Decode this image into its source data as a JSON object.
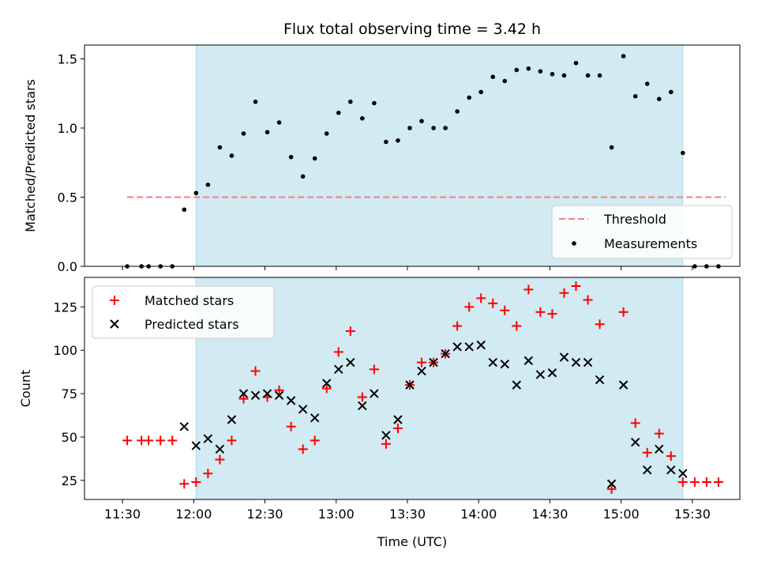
{
  "chart_data": {
    "type": "scatter",
    "title": "Flux total observing time = 3.42 h",
    "xlabel": "Time (UTC)",
    "x_ticks": [
      "11:30",
      "12:00",
      "12:30",
      "13:00",
      "13:30",
      "14:00",
      "14:30",
      "15:00",
      "15:30"
    ],
    "observing_window": [
      "12:01",
      "15:26"
    ],
    "colors": {
      "window": "#add8e6",
      "threshold": "#f08080",
      "measurements": "#000000",
      "matched": "#ff0000",
      "predicted": "#000000"
    },
    "panels": [
      {
        "ylabel": "Matched/Predicted stars",
        "ylim": [
          0,
          1.6
        ],
        "y_ticks": [
          "0.0",
          "0.5",
          "1.0",
          "1.5"
        ],
        "legend": {
          "placement": "lower-right",
          "entries": [
            "Threshold",
            "Measurements"
          ]
        },
        "threshold": {
          "name": "Threshold",
          "value": 0.5,
          "x_range": [
            "11:32",
            "15:44"
          ]
        },
        "series": [
          {
            "name": "Measurements",
            "points": [
              [
                "11:32",
                0.0
              ],
              [
                "11:38",
                0.0
              ],
              [
                "11:41",
                0.0
              ],
              [
                "11:46",
                0.0
              ],
              [
                "11:51",
                0.0
              ],
              [
                "11:56",
                0.41
              ],
              [
                "12:01",
                0.53
              ],
              [
                "12:06",
                0.59
              ],
              [
                "12:11",
                0.86
              ],
              [
                "12:16",
                0.8
              ],
              [
                "12:21",
                0.96
              ],
              [
                "12:26",
                1.19
              ],
              [
                "12:31",
                0.97
              ],
              [
                "12:36",
                1.04
              ],
              [
                "12:41",
                0.79
              ],
              [
                "12:46",
                0.65
              ],
              [
                "12:51",
                0.78
              ],
              [
                "12:56",
                0.96
              ],
              [
                "13:01",
                1.11
              ],
              [
                "13:06",
                1.19
              ],
              [
                "13:11",
                1.07
              ],
              [
                "13:16",
                1.18
              ],
              [
                "13:21",
                0.9
              ],
              [
                "13:26",
                0.91
              ],
              [
                "13:31",
                1.0
              ],
              [
                "13:36",
                1.05
              ],
              [
                "13:41",
                1.0
              ],
              [
                "13:46",
                1.0
              ],
              [
                "13:51",
                1.12
              ],
              [
                "13:56",
                1.22
              ],
              [
                "14:01",
                1.26
              ],
              [
                "14:06",
                1.37
              ],
              [
                "14:11",
                1.34
              ],
              [
                "14:16",
                1.42
              ],
              [
                "14:21",
                1.43
              ],
              [
                "14:26",
                1.41
              ],
              [
                "14:31",
                1.39
              ],
              [
                "14:36",
                1.38
              ],
              [
                "14:41",
                1.47
              ],
              [
                "14:46",
                1.38
              ],
              [
                "14:51",
                1.38
              ],
              [
                "14:56",
                0.86
              ],
              [
                "15:01",
                1.52
              ],
              [
                "15:06",
                1.23
              ],
              [
                "15:11",
                1.32
              ],
              [
                "15:16",
                1.21
              ],
              [
                "15:21",
                1.26
              ],
              [
                "15:26",
                0.82
              ],
              [
                "15:31",
                0.0
              ],
              [
                "15:36",
                0.0
              ],
              [
                "15:41",
                0.0
              ]
            ]
          }
        ]
      },
      {
        "ylabel": "Count",
        "ylim": [
          14,
          142
        ],
        "y_ticks": [
          "25",
          "50",
          "75",
          "100",
          "125"
        ],
        "legend": {
          "placement": "upper-left",
          "entries": [
            "Matched stars",
            "Predicted stars"
          ]
        },
        "series": [
          {
            "name": "Matched stars",
            "marker": "plus",
            "points": [
              [
                "11:32",
                48
              ],
              [
                "11:38",
                48
              ],
              [
                "11:41",
                48
              ],
              [
                "11:46",
                48
              ],
              [
                "11:51",
                48
              ],
              [
                "11:56",
                23
              ],
              [
                "12:01",
                24
              ],
              [
                "12:06",
                29
              ],
              [
                "12:11",
                37
              ],
              [
                "12:16",
                48
              ],
              [
                "12:21",
                72
              ],
              [
                "12:26",
                88
              ],
              [
                "12:31",
                73
              ],
              [
                "12:36",
                77
              ],
              [
                "12:41",
                56
              ],
              [
                "12:46",
                43
              ],
              [
                "12:51",
                48
              ],
              [
                "12:56",
                78
              ],
              [
                "13:01",
                99
              ],
              [
                "13:06",
                111
              ],
              [
                "13:11",
                73
              ],
              [
                "13:16",
                89
              ],
              [
                "13:21",
                46
              ],
              [
                "13:26",
                55
              ],
              [
                "13:31",
                80
              ],
              [
                "13:36",
                93
              ],
              [
                "13:41",
                93
              ],
              [
                "13:46",
                98
              ],
              [
                "13:51",
                114
              ],
              [
                "13:56",
                125
              ],
              [
                "14:01",
                130
              ],
              [
                "14:06",
                127
              ],
              [
                "14:11",
                123
              ],
              [
                "14:16",
                114
              ],
              [
                "14:21",
                135
              ],
              [
                "14:26",
                122
              ],
              [
                "14:31",
                121
              ],
              [
                "14:36",
                133
              ],
              [
                "14:41",
                137
              ],
              [
                "14:46",
                129
              ],
              [
                "14:51",
                115
              ],
              [
                "14:56",
                20
              ],
              [
                "15:01",
                122
              ],
              [
                "15:06",
                58
              ],
              [
                "15:11",
                41
              ],
              [
                "15:16",
                52
              ],
              [
                "15:21",
                39
              ],
              [
                "15:26",
                24
              ],
              [
                "15:31",
                24
              ],
              [
                "15:36",
                24
              ],
              [
                "15:41",
                24
              ]
            ]
          },
          {
            "name": "Predicted stars",
            "marker": "x",
            "points": [
              [
                "11:56",
                56
              ],
              [
                "12:01",
                45
              ],
              [
                "12:06",
                49
              ],
              [
                "12:11",
                43
              ],
              [
                "12:16",
                60
              ],
              [
                "12:21",
                75
              ],
              [
                "12:26",
                74
              ],
              [
                "12:31",
                75
              ],
              [
                "12:36",
                74
              ],
              [
                "12:41",
                71
              ],
              [
                "12:46",
                66
              ],
              [
                "12:51",
                61
              ],
              [
                "12:56",
                81
              ],
              [
                "13:01",
                89
              ],
              [
                "13:06",
                93
              ],
              [
                "13:11",
                68
              ],
              [
                "13:16",
                75
              ],
              [
                "13:21",
                51
              ],
              [
                "13:26",
                60
              ],
              [
                "13:31",
                80
              ],
              [
                "13:36",
                88
              ],
              [
                "13:41",
                93
              ],
              [
                "13:46",
                98
              ],
              [
                "13:51",
                102
              ],
              [
                "13:56",
                102
              ],
              [
                "14:01",
                103
              ],
              [
                "14:06",
                93
              ],
              [
                "14:11",
                92
              ],
              [
                "14:16",
                80
              ],
              [
                "14:21",
                94
              ],
              [
                "14:26",
                86
              ],
              [
                "14:31",
                87
              ],
              [
                "14:36",
                96
              ],
              [
                "14:41",
                93
              ],
              [
                "14:46",
                93
              ],
              [
                "14:51",
                83
              ],
              [
                "14:56",
                23
              ],
              [
                "15:01",
                80
              ],
              [
                "15:06",
                47
              ],
              [
                "15:11",
                31
              ],
              [
                "15:16",
                43
              ],
              [
                "15:21",
                31
              ],
              [
                "15:26",
                29
              ]
            ]
          }
        ]
      }
    ]
  }
}
